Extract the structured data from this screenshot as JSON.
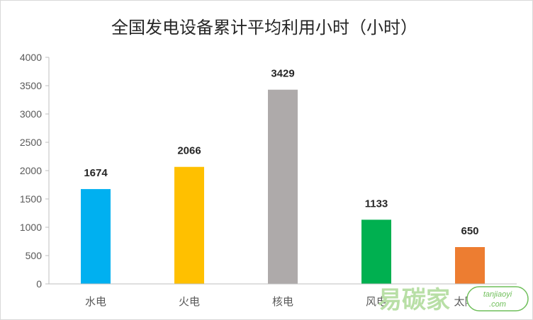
{
  "chart_data": {
    "type": "bar",
    "title": "全国发电设备累计平均利用小时（小时）",
    "categories": [
      "水电",
      "火电",
      "核电",
      "风电",
      "太阳能"
    ],
    "values": [
      1674,
      2066,
      3429,
      1133,
      650
    ],
    "data_labels": [
      "1674",
      "2066",
      "3429",
      "1133",
      "650"
    ],
    "colors": [
      "#00b0f0",
      "#ffc000",
      "#aeaaaa",
      "#00b050",
      "#ed7d31"
    ],
    "ylim": [
      0,
      4000
    ],
    "yticks": [
      0,
      500,
      1000,
      1500,
      2000,
      2500,
      3000,
      3500,
      4000
    ],
    "ytick_labels": [
      "0",
      "500",
      "1000",
      "1500",
      "2000",
      "2500",
      "3000",
      "3500",
      "4000"
    ],
    "xlabel": "",
    "ylabel": "",
    "grid": false,
    "legend": "none"
  },
  "watermark": {
    "main_text": "易碳家",
    "sub_text": "tanjiaoyi",
    "sub_text2": ".com"
  }
}
